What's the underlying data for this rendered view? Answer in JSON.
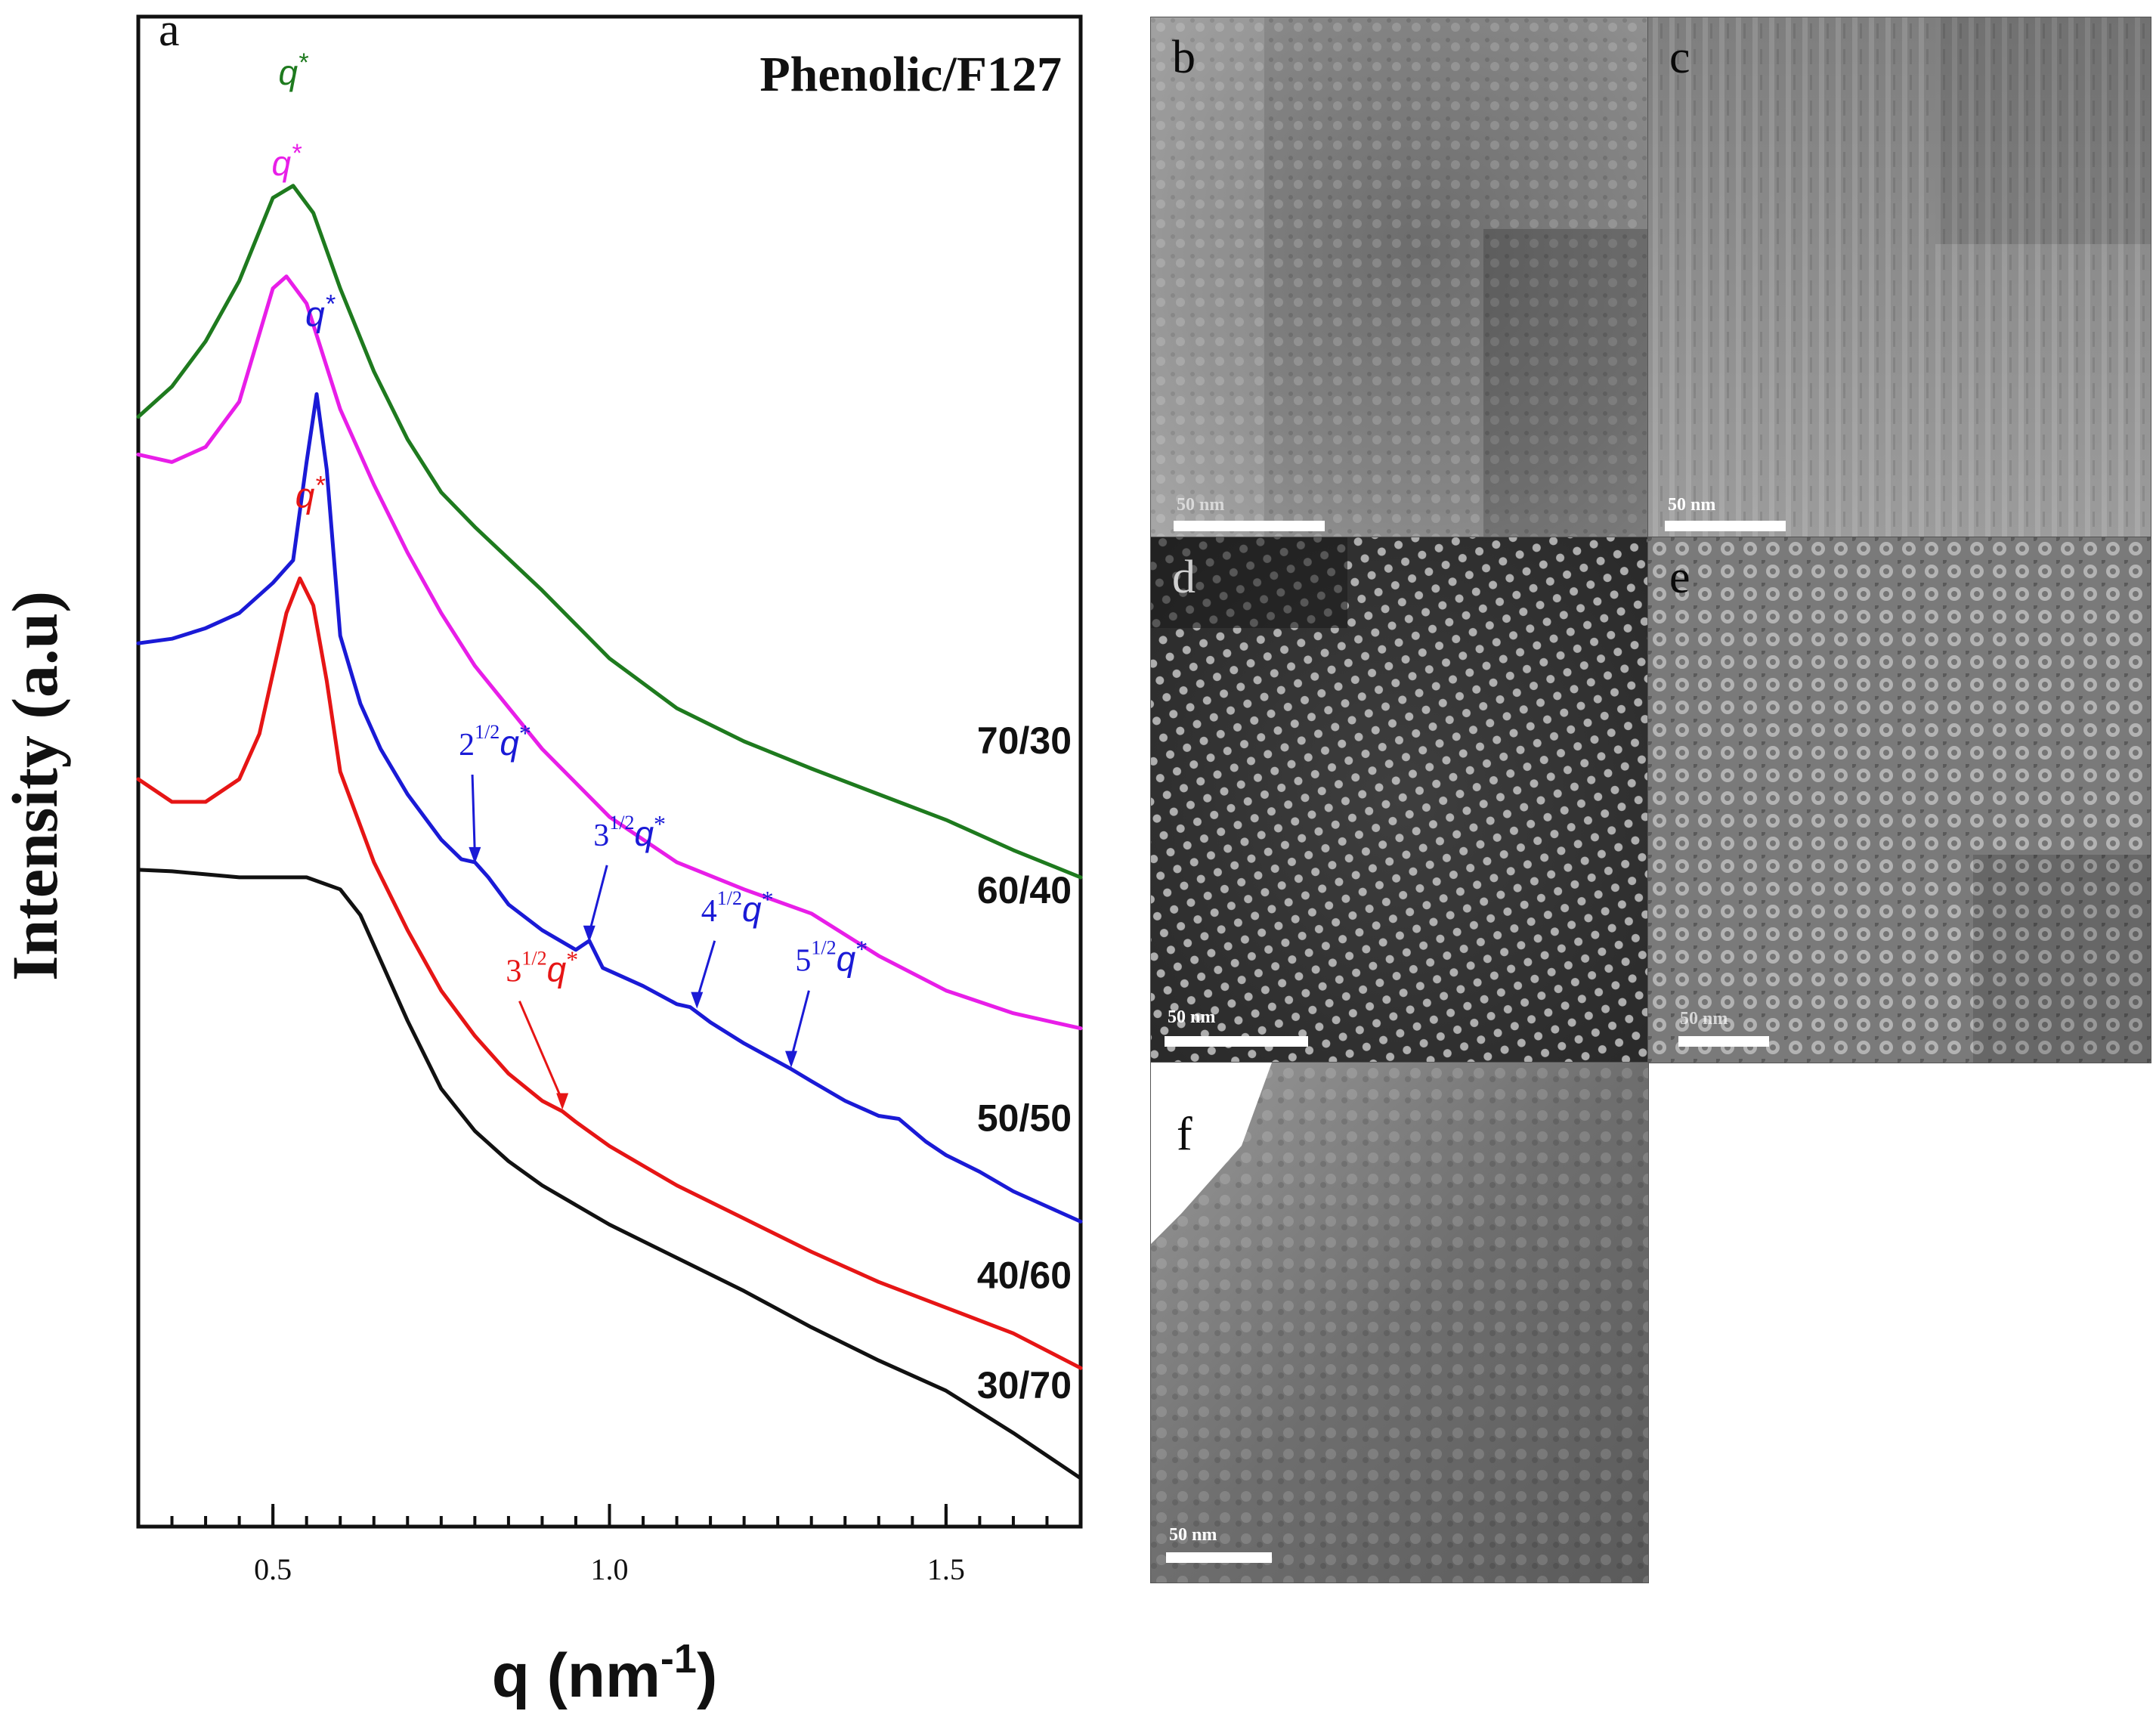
{
  "chart_data": {
    "type": "line",
    "panel_letter": "a",
    "title": "Phenolic/F127",
    "xlabel_main": "q (nm",
    "xlabel_sup": "-1",
    "xlabel_close": ")",
    "ylabel": "Intensity (a.u)",
    "xlim": [
      0.3,
      1.7
    ],
    "ylim": [
      0,
      10
    ],
    "xticks": [
      0.5,
      1.0,
      1.5
    ],
    "xtick_labels": [
      "0.5",
      "1.0",
      "1.5"
    ],
    "yticks_shown": false,
    "series": [
      {
        "name": "70/30",
        "color": "#1e7a1e",
        "x": [
          0.3,
          0.35,
          0.4,
          0.45,
          0.5,
          0.53,
          0.56,
          0.6,
          0.65,
          0.7,
          0.75,
          0.8,
          0.9,
          1.0,
          1.1,
          1.2,
          1.3,
          1.4,
          1.5,
          1.6,
          1.7
        ],
        "y": [
          7.35,
          7.55,
          7.85,
          8.25,
          8.8,
          8.88,
          8.7,
          8.2,
          7.65,
          7.2,
          6.85,
          6.62,
          6.2,
          5.75,
          5.42,
          5.2,
          5.02,
          4.85,
          4.68,
          4.48,
          4.3
        ]
      },
      {
        "name": "60/40",
        "color": "#e81ee8",
        "x": [
          0.3,
          0.35,
          0.4,
          0.45,
          0.48,
          0.5,
          0.52,
          0.55,
          0.6,
          0.65,
          0.7,
          0.75,
          0.8,
          0.9,
          1.0,
          1.1,
          1.2,
          1.3,
          1.4,
          1.5,
          1.6,
          1.7
        ],
        "y": [
          7.1,
          7.05,
          7.15,
          7.45,
          7.9,
          8.2,
          8.28,
          8.1,
          7.4,
          6.9,
          6.45,
          6.05,
          5.7,
          5.15,
          4.7,
          4.4,
          4.22,
          4.06,
          3.78,
          3.55,
          3.4,
          3.3
        ]
      },
      {
        "name": "50/50",
        "color": "#1a1ad6",
        "x": [
          0.3,
          0.35,
          0.4,
          0.45,
          0.5,
          0.53,
          0.55,
          0.565,
          0.58,
          0.6,
          0.63,
          0.66,
          0.7,
          0.75,
          0.78,
          0.8,
          0.82,
          0.85,
          0.9,
          0.95,
          0.97,
          0.99,
          1.05,
          1.1,
          1.12,
          1.15,
          1.2,
          1.27,
          1.3,
          1.35,
          1.4,
          1.43,
          1.47,
          1.5,
          1.55,
          1.6,
          1.65,
          1.7
        ],
        "y": [
          5.85,
          5.88,
          5.95,
          6.05,
          6.25,
          6.4,
          7.05,
          7.5,
          7.0,
          5.9,
          5.45,
          5.15,
          4.85,
          4.55,
          4.42,
          4.4,
          4.3,
          4.12,
          3.95,
          3.82,
          3.88,
          3.7,
          3.58,
          3.46,
          3.44,
          3.34,
          3.2,
          3.03,
          2.95,
          2.82,
          2.72,
          2.7,
          2.55,
          2.46,
          2.35,
          2.22,
          2.12,
          2.02
        ]
      },
      {
        "name": "40/60",
        "color": "#e61515",
        "x": [
          0.3,
          0.35,
          0.4,
          0.45,
          0.48,
          0.5,
          0.52,
          0.54,
          0.56,
          0.58,
          0.6,
          0.65,
          0.7,
          0.75,
          0.8,
          0.85,
          0.9,
          0.93,
          0.95,
          1.0,
          1.1,
          1.2,
          1.3,
          1.4,
          1.5,
          1.6,
          1.7
        ],
        "y": [
          4.95,
          4.8,
          4.8,
          4.95,
          5.25,
          5.65,
          6.05,
          6.28,
          6.1,
          5.6,
          5.0,
          4.4,
          3.95,
          3.55,
          3.25,
          3.0,
          2.82,
          2.75,
          2.68,
          2.52,
          2.26,
          2.04,
          1.82,
          1.62,
          1.45,
          1.28,
          1.05
        ]
      },
      {
        "name": "30/70",
        "color": "#111111",
        "x": [
          0.3,
          0.35,
          0.4,
          0.45,
          0.5,
          0.55,
          0.6,
          0.63,
          0.65,
          0.7,
          0.75,
          0.8,
          0.85,
          0.9,
          1.0,
          1.1,
          1.2,
          1.3,
          1.4,
          1.5,
          1.6,
          1.7
        ],
        "y": [
          4.35,
          4.34,
          4.32,
          4.3,
          4.3,
          4.3,
          4.22,
          4.05,
          3.85,
          3.35,
          2.9,
          2.62,
          2.42,
          2.26,
          2.0,
          1.78,
          1.56,
          1.32,
          1.1,
          0.9,
          0.62,
          0.32
        ]
      }
    ],
    "series_labels": [
      {
        "text": "70/30",
        "x": 1.7,
        "y": 5.12
      },
      {
        "text": "60/40",
        "x": 1.7,
        "y": 4.13
      },
      {
        "text": "50/50",
        "x": 1.7,
        "y": 2.62
      },
      {
        "text": "40/60",
        "x": 1.7,
        "y": 1.58
      },
      {
        "text": "30/70",
        "x": 1.7,
        "y": 0.85
      }
    ],
    "peak_annotations": [
      {
        "series": "70/30",
        "base": "q",
        "x": 0.53,
        "y": 9.55
      },
      {
        "series": "60/40",
        "base": "q",
        "x": 0.52,
        "y": 8.95
      },
      {
        "series": "50/50",
        "base": "q",
        "x": 0.57,
        "y": 7.95
      },
      {
        "series": "40/60",
        "base": "q",
        "x": 0.555,
        "y": 6.75
      }
    ],
    "harmonic_annotations": [
      {
        "series": "50/50",
        "prefix": "2",
        "exponent": "1/2",
        "base": "q",
        "x": 0.8,
        "y": 4.38,
        "label_x": 0.83,
        "label_y": 5.05
      },
      {
        "series": "50/50",
        "prefix": "3",
        "exponent": "1/2",
        "base": "q",
        "x": 0.97,
        "y": 3.86,
        "label_x": 1.03,
        "label_y": 4.45
      },
      {
        "series": "50/50",
        "prefix": "4",
        "exponent": "1/2",
        "base": "q",
        "x": 1.13,
        "y": 3.42,
        "label_x": 1.19,
        "label_y": 3.95
      },
      {
        "series": "50/50",
        "prefix": "5",
        "exponent": "1/2",
        "base": "q",
        "x": 1.27,
        "y": 3.03,
        "label_x": 1.33,
        "label_y": 3.62
      },
      {
        "series": "40/60",
        "prefix": "3",
        "exponent": "1/2",
        "base": "q",
        "x": 0.93,
        "y": 2.75,
        "label_x": 0.9,
        "label_y": 3.55
      }
    ]
  },
  "tem_panels": [
    {
      "letter": "b",
      "scale": "50 nm"
    },
    {
      "letter": "c",
      "scale": "50 nm"
    },
    {
      "letter": "d",
      "scale": "50 nm"
    },
    {
      "letter": "e",
      "scale": "50 nm"
    },
    {
      "letter": "f",
      "scale": "50 nm"
    }
  ]
}
